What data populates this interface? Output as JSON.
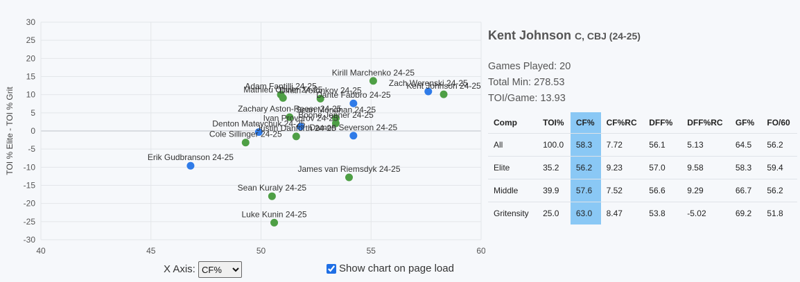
{
  "chart_data": {
    "type": "scatter",
    "xlabel": "",
    "ylabel": "TOI % Elite - TOI % Grit",
    "xlim": [
      40,
      60
    ],
    "ylim": [
      -30,
      30
    ],
    "xticks": [
      40,
      45,
      50,
      55,
      60
    ],
    "yticks": [
      -30,
      -25,
      -20,
      -15,
      -10,
      -5,
      0,
      5,
      10,
      15,
      20,
      25,
      30
    ],
    "points": [
      {
        "label": "Kirill Marchenko 24-25",
        "x": 55.1,
        "y": 13.8,
        "color": "#4e9f45"
      },
      {
        "label": "Zach Werenski 24-25",
        "x": 57.6,
        "y": 10.9,
        "color": "#2f7be8"
      },
      {
        "label": "Kent Johnson 24-25",
        "x": 58.3,
        "y": 10.1,
        "color": "#4e9f45"
      },
      {
        "label": "Adam Fantilli 24-25",
        "x": 50.9,
        "y": 10.0,
        "color": "#4e9f45"
      },
      {
        "label": "Mathieu Olivier 24-25",
        "x": 51.0,
        "y": 9.1,
        "color": "#4e9f45"
      },
      {
        "label": "Dmitri Voronkov 24-25",
        "x": 52.7,
        "y": 8.9,
        "color": "#4e9f45"
      },
      {
        "label": "Dante Fabbro 24-25",
        "x": 54.2,
        "y": 7.6,
        "color": "#2f7be8"
      },
      {
        "label": "Zachary Aston-Reese 24-25",
        "x": 51.3,
        "y": 3.8,
        "color": "#4e9f45"
      },
      {
        "label": "Sean Monahan 24-25",
        "x": 53.4,
        "y": 3.5,
        "color": "#4e9f45"
      },
      {
        "label": "Boone Jenner 24-25",
        "x": 53.4,
        "y": 2.1,
        "color": "#4e9f45"
      },
      {
        "label": "Ivan Provorov 24-25",
        "x": 51.8,
        "y": 1.2,
        "color": "#2f7be8"
      },
      {
        "label": "Denton Mateychuk 24-25",
        "x": 49.9,
        "y": -0.3,
        "color": "#2f7be8"
      },
      {
        "label": "Justin Danforth 24-25",
        "x": 51.6,
        "y": -1.5,
        "color": "#4e9f45"
      },
      {
        "label": "Damon Severson 24-25",
        "x": 54.2,
        "y": -1.3,
        "color": "#2f7be8"
      },
      {
        "label": "Cole Sillinger 24-25",
        "x": 49.3,
        "y": -3.2,
        "color": "#4e9f45"
      },
      {
        "label": "Erik Gudbranson 24-25",
        "x": 46.8,
        "y": -9.6,
        "color": "#2f7be8"
      },
      {
        "label": "James van Riemsdyk 24-25",
        "x": 54.0,
        "y": -12.8,
        "color": "#4e9f45"
      },
      {
        "label": "Sean Kuraly 24-25",
        "x": 50.5,
        "y": -18.0,
        "color": "#4e9f45"
      },
      {
        "label": "Luke Kunin 24-25",
        "x": 50.6,
        "y": -25.3,
        "color": "#4e9f45"
      }
    ]
  },
  "controls": {
    "x_axis_label": "X Axis:",
    "x_axis_value": "CF%",
    "show_chart_label": "Show chart on page load"
  },
  "player": {
    "name": "Kent Johnson",
    "position_team": "C, CBJ (24-25)",
    "games_played": "Games Played: 20",
    "total_min": "Total Min: 278.53",
    "toi_game": "TOI/Game: 13.93"
  },
  "stats_table": {
    "headers": [
      "Comp",
      "TOI%",
      "CF%",
      "CF%RC",
      "DFF%",
      "DFF%RC",
      "GF%",
      "FO/60"
    ],
    "rows": [
      [
        "All",
        "100.0",
        "58.3",
        "7.72",
        "56.1",
        "5.13",
        "64.5",
        "56.2"
      ],
      [
        "Elite",
        "35.2",
        "56.2",
        "9.23",
        "57.0",
        "9.58",
        "58.3",
        "59.4"
      ],
      [
        "Middle",
        "39.9",
        "57.6",
        "7.52",
        "56.6",
        "9.29",
        "66.7",
        "56.2"
      ],
      [
        "Gritensity",
        "25.0",
        "63.0",
        "8.47",
        "53.8",
        "-5.02",
        "69.2",
        "51.8"
      ]
    ]
  }
}
